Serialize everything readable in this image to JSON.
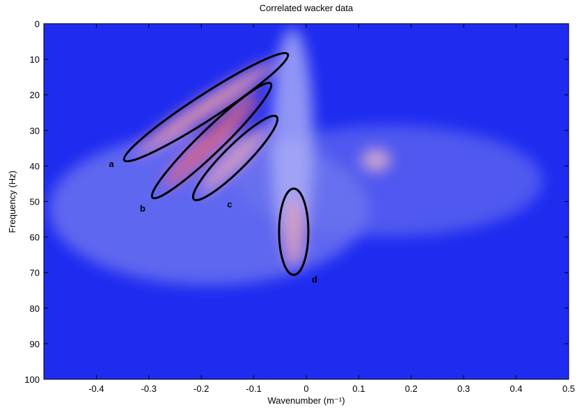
{
  "chart_data": {
    "type": "heatmap",
    "title": "Correlated wacker data",
    "x_label": "Wavenumber (m⁻¹)",
    "y_label": "Frequency (Hz)",
    "xlim": [
      -0.5,
      0.5
    ],
    "xticks": [
      -0.4,
      -0.3,
      -0.2,
      -0.1,
      0,
      0.1,
      0.2,
      0.3,
      0.4,
      0.5
    ],
    "ylim": [
      0,
      100
    ],
    "yticks": [
      0,
      10,
      20,
      30,
      40,
      50,
      60,
      70,
      80,
      90,
      100
    ],
    "y_inverted": true,
    "annotations": [
      "a",
      "b",
      "c",
      "d"
    ]
  }
}
